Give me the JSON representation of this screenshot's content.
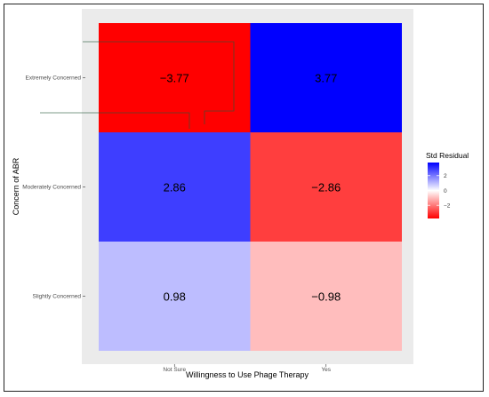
{
  "chart_data": {
    "type": "heatmap",
    "xlabel": "Willingness to Use Phage Therapy",
    "ylabel": "Concern of ABR",
    "x_categories": [
      "Not Sure",
      "Yes"
    ],
    "y_categories": [
      "Extremely Concerned",
      "Moderately Concerned",
      "Slightly Concerned"
    ],
    "cells": [
      {
        "x": "Not Sure",
        "y": "Extremely Concerned",
        "value": -3.77,
        "label": "−3.77"
      },
      {
        "x": "Yes",
        "y": "Extremely Concerned",
        "value": 3.77,
        "label": "3.77"
      },
      {
        "x": "Not Sure",
        "y": "Moderately Concerned",
        "value": 2.86,
        "label": "2.86"
      },
      {
        "x": "Yes",
        "y": "Moderately Concerned",
        "value": -2.86,
        "label": "−2.86"
      },
      {
        "x": "Not Sure",
        "y": "Slightly Concerned",
        "value": 0.98,
        "label": "0.98"
      },
      {
        "x": "Yes",
        "y": "Slightly Concerned",
        "value": -0.98,
        "label": "−0.98"
      }
    ],
    "color_scale": {
      "low": "#ff0000",
      "mid": "#ffffff",
      "high": "#0000ff",
      "limits": [
        -3.77,
        3.77
      ]
    },
    "legend": {
      "title": "Std Residual",
      "position": "right",
      "ticks": [
        {
          "value": 2,
          "label": "2"
        },
        {
          "value": 0,
          "label": "0"
        },
        {
          "value": -2,
          "label": "−2"
        }
      ]
    },
    "panel_background": "#ebebeb",
    "grid": false
  }
}
